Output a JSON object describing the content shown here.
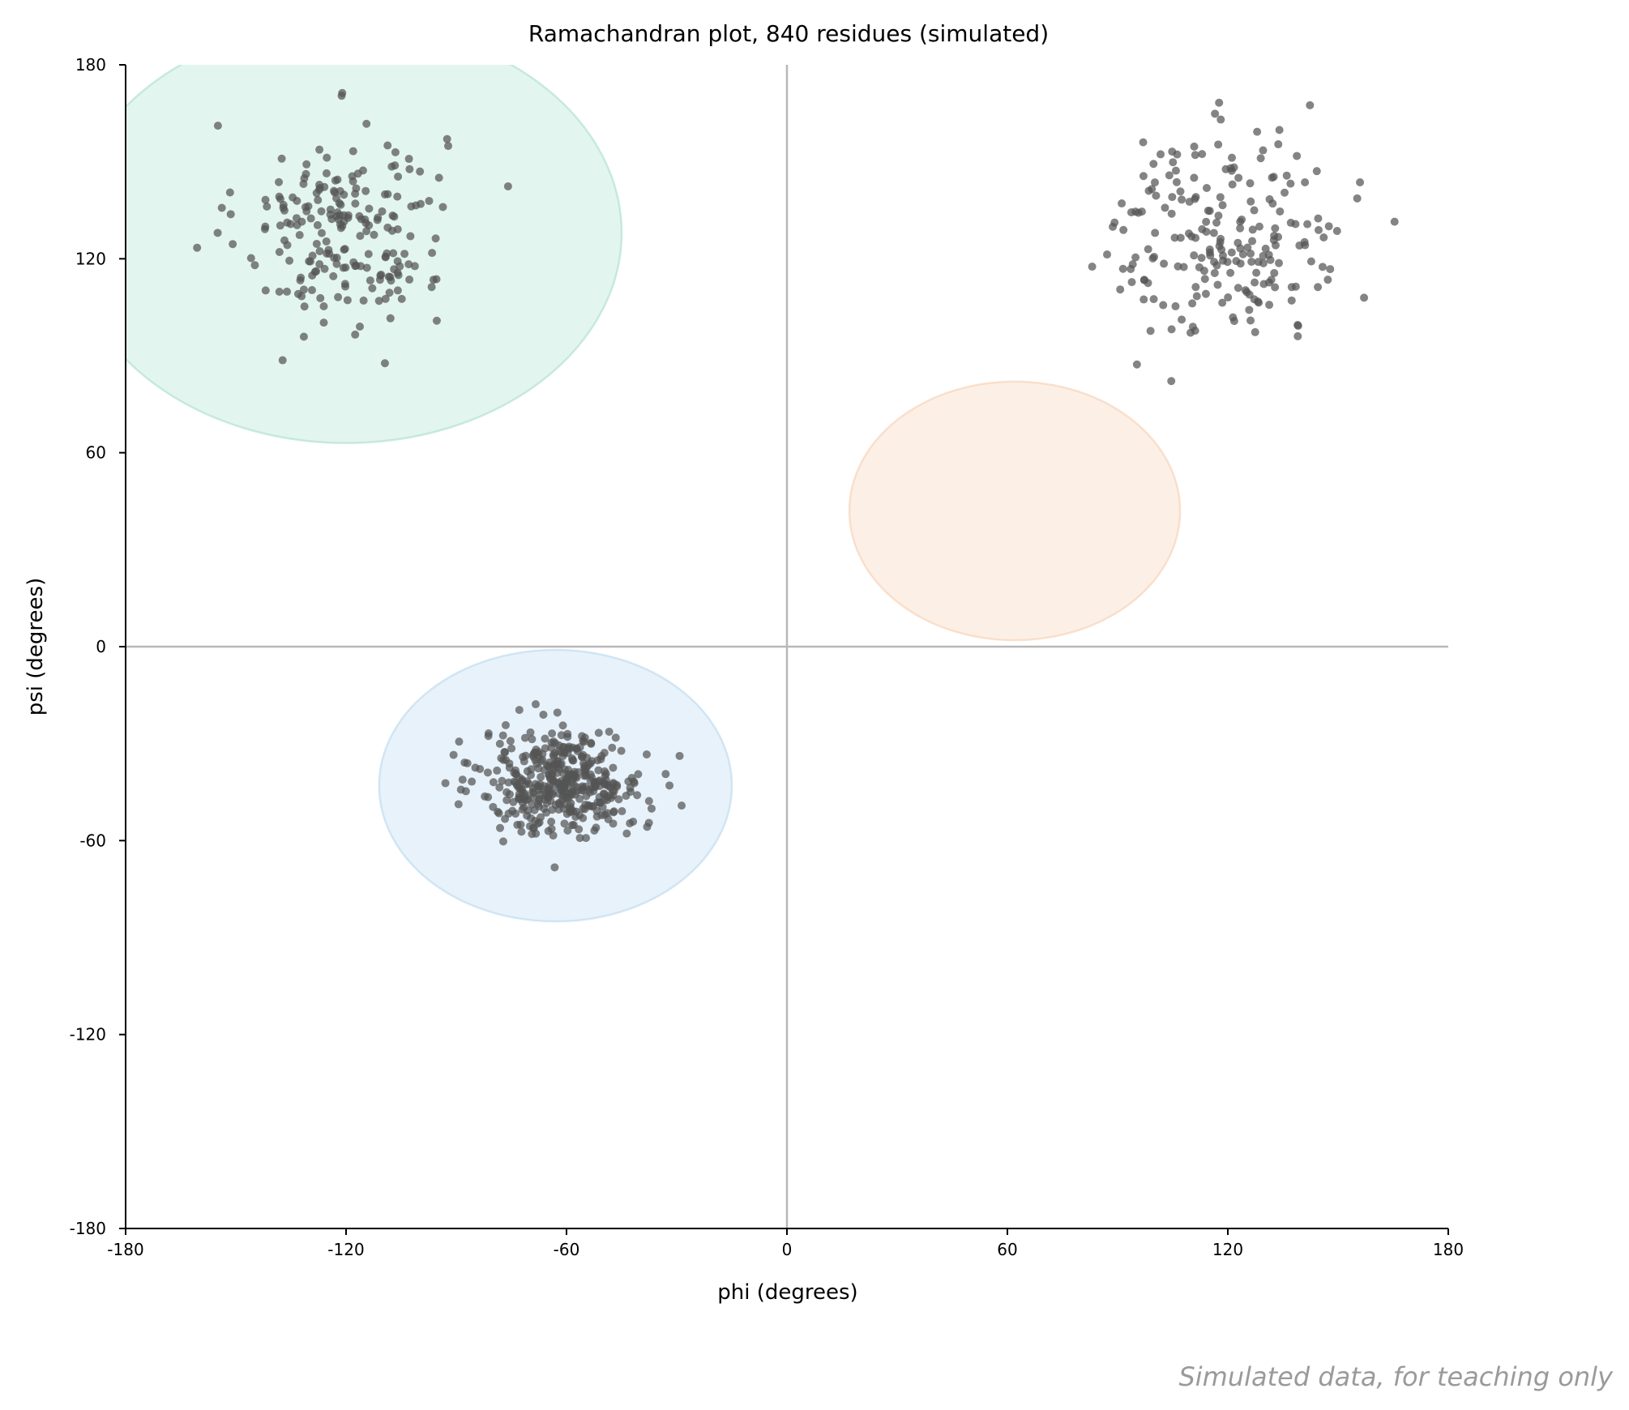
{
  "chart_data": {
    "type": "scatter",
    "title": "Ramachandran plot, 840 residues (simulated)",
    "xlabel": "phi (degrees)",
    "ylabel": "psi (degrees)",
    "xlim": [
      -180,
      180
    ],
    "ylim": [
      -180,
      180
    ],
    "xticks": [
      "-180",
      "-120",
      "-60",
      "0",
      "60",
      "120",
      "180"
    ],
    "yticks": [
      "-180",
      "-120",
      "-60",
      "0",
      "60",
      "120",
      "180"
    ],
    "grid": false,
    "zero_lines": true,
    "point_color": "#555555",
    "regions": [
      {
        "center": [
          -120,
          128
        ],
        "radius": [
          75,
          65
        ],
        "color": "#a8e0cc"
      },
      {
        "center": [
          -63,
          -43
        ],
        "radius": [
          48,
          42
        ],
        "color": "#b9d8ee"
      },
      {
        "center": [
          62,
          42
        ],
        "radius": [
          45,
          40
        ],
        "color": "#f6cfb2"
      }
    ],
    "clusters": [
      {
        "center": [
          -121,
          130
        ],
        "spread": [
          14,
          16
        ],
        "count": 210
      },
      {
        "center": [
          -61,
          -42
        ],
        "spread": [
          11,
          8
        ],
        "count": 420
      },
      {
        "center": [
          120,
          127
        ],
        "spread": [
          16,
          16
        ],
        "count": 210
      }
    ]
  },
  "footnote": "Simulated data, for teaching only"
}
